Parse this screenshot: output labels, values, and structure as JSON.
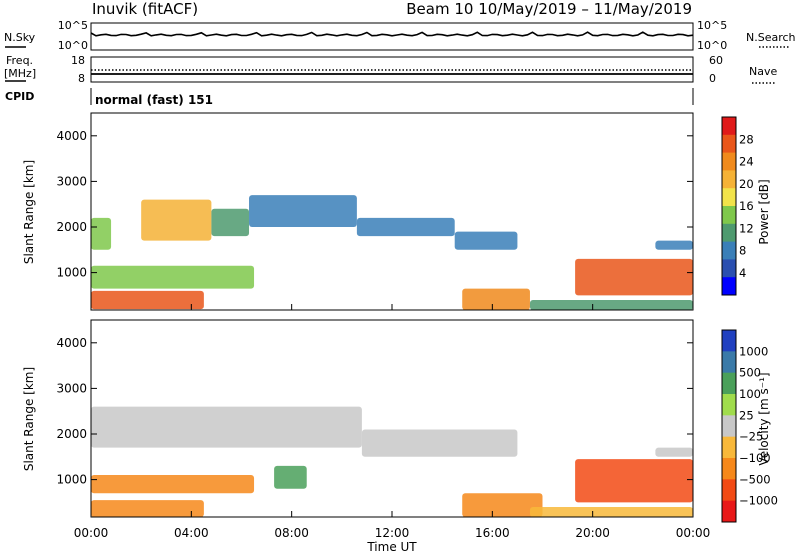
{
  "header": {
    "station": "Inuvik (fitACF)",
    "beam_info": "Beam 10  10/May/2019 – 11/May/2019"
  },
  "panel_nsky": {
    "left_label": "N.Sky",
    "left_ticks": [
      "10^5",
      "10^0"
    ],
    "right_label": "N.Search",
    "right_ticks": [
      "10^5",
      "10^0"
    ]
  },
  "panel_freq": {
    "left_label_1": "Freq.",
    "left_label_2": "[MHz]",
    "left_ticks": [
      "18",
      "8"
    ],
    "right_label": "Nave",
    "right_ticks": [
      "60",
      "0"
    ]
  },
  "panel_cpid": {
    "label": "CPID",
    "mode_text": "normal (fast) 151"
  },
  "colors": {
    "power_scale": [
      "#0000ff",
      "#2a4fb0",
      "#3a7fb8",
      "#4e9a6f",
      "#7fc84b",
      "#f2e34a",
      "#f5b236",
      "#f08a1c",
      "#e9561a",
      "#e01a1a"
    ],
    "velocity_scale": [
      "#e81818",
      "#f24a14",
      "#f6881a",
      "#f8b83a",
      "#c8c8c8",
      "#a0dc4c",
      "#4aa05a",
      "#3a7aa8",
      "#2040c0"
    ]
  },
  "chart_data": [
    {
      "type": "heatmap",
      "name": "power",
      "ylabel": "Slant Range [km]",
      "xlabel": "Time UT",
      "x_ticks": [
        "00:00",
        "04:00",
        "08:00",
        "12:00",
        "16:00",
        "20:00",
        "00:00"
      ],
      "x_range_hours": [
        0,
        24
      ],
      "y_ticks": [
        1000,
        2000,
        3000,
        4000
      ],
      "ylim": [
        180,
        4500
      ],
      "colorbar_label": "Power [dB]",
      "colorbar_ticks": [
        "28",
        "24",
        "20",
        "16",
        "12",
        "8",
        "4"
      ],
      "colorbar_range": [
        0,
        30
      ],
      "regions": [
        {
          "x": [
            0.0,
            4.5
          ],
          "y": [
            200,
            600
          ],
          "value": 26
        },
        {
          "x": [
            0.0,
            6.5
          ],
          "y": [
            650,
            1150
          ],
          "value": 14
        },
        {
          "x": [
            0.0,
            0.8
          ],
          "y": [
            1500,
            2200
          ],
          "value": 12
        },
        {
          "x": [
            2.0,
            4.8
          ],
          "y": [
            1700,
            2600
          ],
          "value": 20
        },
        {
          "x": [
            4.8,
            6.3
          ],
          "y": [
            1800,
            2400
          ],
          "value": 10
        },
        {
          "x": [
            6.3,
            10.6
          ],
          "y": [
            2000,
            2700
          ],
          "value": 7
        },
        {
          "x": [
            10.6,
            14.5
          ],
          "y": [
            1800,
            2200
          ],
          "value": 7
        },
        {
          "x": [
            14.5,
            17.0
          ],
          "y": [
            1500,
            1900
          ],
          "value": 6
        },
        {
          "x": [
            14.8,
            17.5
          ],
          "y": [
            180,
            650
          ],
          "value": 22
        },
        {
          "x": [
            19.3,
            24.0
          ],
          "y": [
            500,
            1300
          ],
          "value": 24
        },
        {
          "x": [
            17.5,
            24.0
          ],
          "y": [
            180,
            400
          ],
          "value": 10
        },
        {
          "x": [
            22.5,
            24.0
          ],
          "y": [
            1500,
            1700
          ],
          "value": 6
        }
      ]
    },
    {
      "type": "heatmap",
      "name": "velocity",
      "ylabel": "Slant Range [km]",
      "xlabel": "Time UT",
      "x_ticks": [
        "00:00",
        "04:00",
        "08:00",
        "12:00",
        "16:00",
        "20:00",
        "00:00"
      ],
      "x_range_hours": [
        0,
        24
      ],
      "y_ticks": [
        1000,
        2000,
        3000,
        4000
      ],
      "ylim": [
        180,
        4500
      ],
      "colorbar_label": "Velocity [m s⁻¹]",
      "colorbar_ticks": [
        "1000",
        "500",
        "100",
        "25",
        "−25",
        "−100",
        "−500",
        "−1000"
      ],
      "regions": [
        {
          "x": [
            0.0,
            4.5
          ],
          "y": [
            180,
            550
          ],
          "value": -150
        },
        {
          "x": [
            0.0,
            6.5
          ],
          "y": [
            700,
            1100
          ],
          "value": -120
        },
        {
          "x": [
            0.0,
            10.8
          ],
          "y": [
            1700,
            2600
          ],
          "value": 0
        },
        {
          "x": [
            10.8,
            17.0
          ],
          "y": [
            1500,
            2100
          ],
          "value": 0
        },
        {
          "x": [
            7.3,
            8.6
          ],
          "y": [
            800,
            1300
          ],
          "value": 200
        },
        {
          "x": [
            14.8,
            18.0
          ],
          "y": [
            180,
            700
          ],
          "value": -200
        },
        {
          "x": [
            19.3,
            24.0
          ],
          "y": [
            500,
            1450
          ],
          "value": -600
        },
        {
          "x": [
            17.5,
            24.0
          ],
          "y": [
            180,
            400
          ],
          "value": -80
        },
        {
          "x": [
            22.5,
            24.0
          ],
          "y": [
            1500,
            1700
          ],
          "value": 0
        }
      ]
    }
  ]
}
